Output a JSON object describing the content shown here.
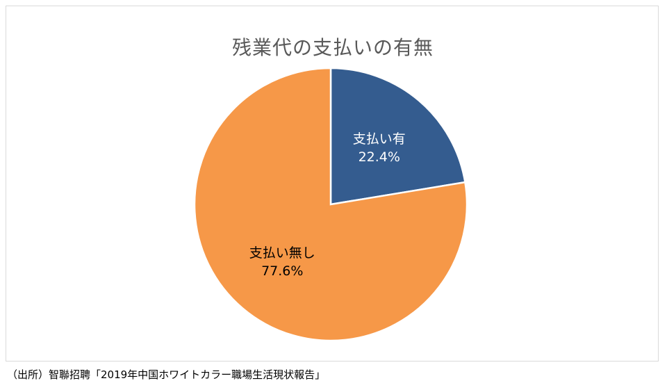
{
  "chart_data": {
    "type": "pie",
    "title": "残業代の支払いの有無",
    "slices": [
      {
        "label": "支払い有",
        "value": 22.4,
        "value_label": "22.4%",
        "color": "#345c8f",
        "label_color": "#ffffff"
      },
      {
        "label": "支払い無し",
        "value": 77.6,
        "value_label": "77.6%",
        "color": "#f69848",
        "label_color": "#000000"
      }
    ],
    "start_angle_deg": 0,
    "direction": "clockwise",
    "legend": "none"
  },
  "source": "（出所）智聯招聘「2019年中国ホワイトカラー職場生活現状報告」"
}
